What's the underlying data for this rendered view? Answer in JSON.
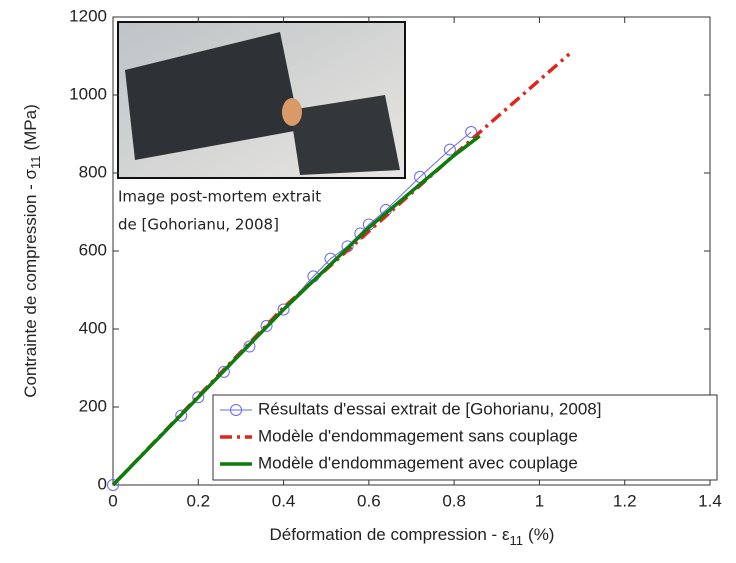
{
  "chart_data": {
    "type": "line",
    "xlabel": {
      "text": "Déformation de compression - ε",
      "sub": "11",
      "unit": "(%)"
    },
    "ylabel": {
      "text": "Contrainte de compression - σ",
      "sub": "11",
      "unit": "(MPa)"
    },
    "xlim": [
      0,
      1.4
    ],
    "xticks": [
      0,
      0.2,
      0.4,
      0.6,
      0.8,
      1,
      1.2,
      1.4
    ],
    "ylim": [
      0,
      1200
    ],
    "yticks": [
      0,
      200,
      400,
      600,
      800,
      1000,
      1200
    ],
    "grid": false,
    "legend": "lower right",
    "inset": {
      "caption": [
        "Image post-mortem extrait",
        "de [Gohorianu, 2008]"
      ]
    },
    "series": [
      {
        "name": "Résultats d'essai extrait de [Gohorianu, 2008]",
        "color": "#6a6af0",
        "style": "line-marker",
        "x": [
          0,
          0.16,
          0.2,
          0.26,
          0.32,
          0.36,
          0.4,
          0.47,
          0.51,
          0.55,
          0.58,
          0.6,
          0.64,
          0.72,
          0.79,
          0.84
        ],
        "values": [
          0,
          178,
          225,
          290,
          355,
          408,
          450,
          535,
          580,
          612,
          645,
          668,
          705,
          790,
          860,
          905
        ]
      },
      {
        "name": "Modèle d'endommagement sans couplage",
        "color": "#e0261c",
        "style": "dash-dot",
        "x": [
          0,
          0.4,
          0.85,
          1.07
        ],
        "values": [
          0,
          455,
          895,
          1105
        ]
      },
      {
        "name": "Modèle d'endommagement avec couplage",
        "color": "#0b7d0b",
        "style": "solid",
        "x": [
          0,
          0.4,
          0.6,
          0.8,
          0.86
        ],
        "values": [
          0,
          450,
          660,
          845,
          895
        ]
      }
    ]
  }
}
